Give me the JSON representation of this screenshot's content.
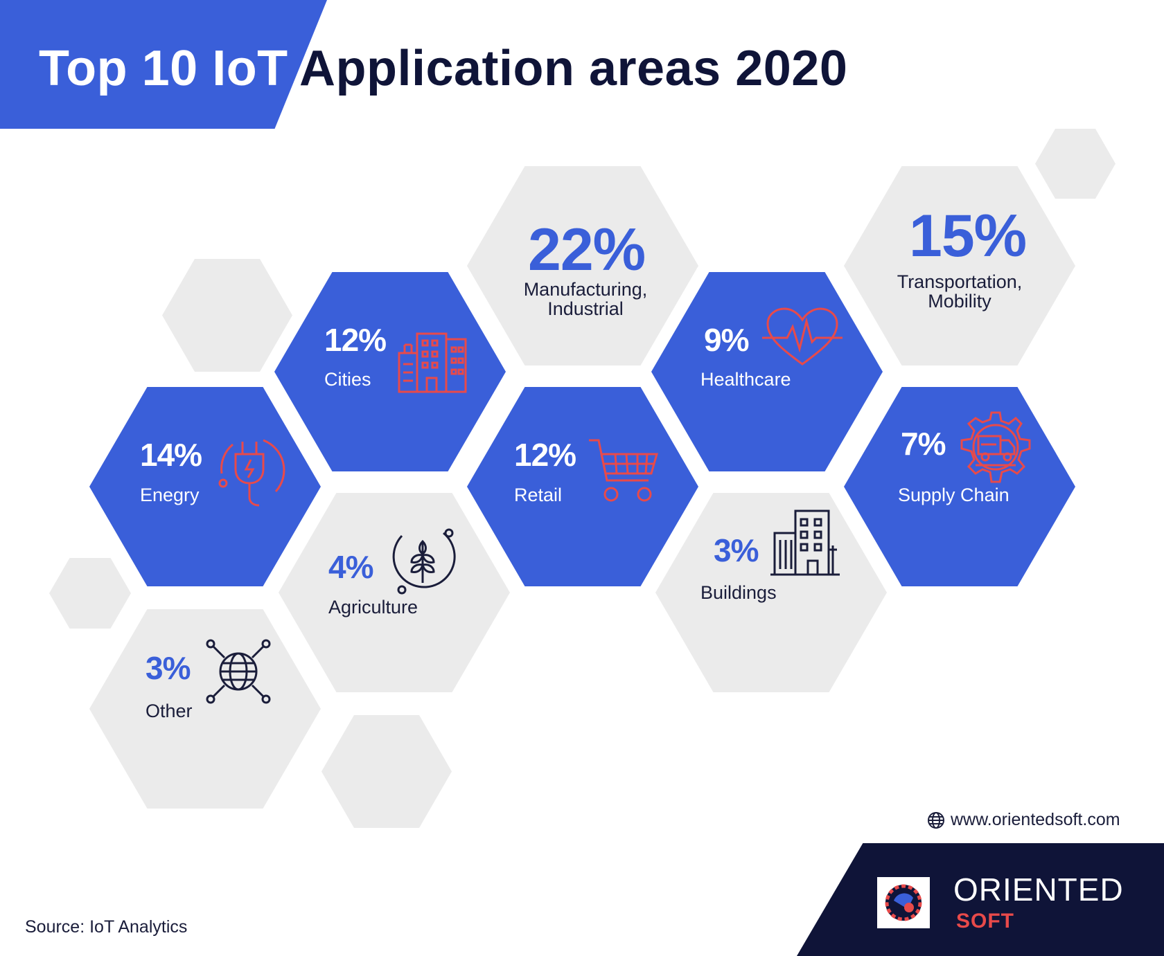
{
  "title": {
    "part1": "Top 10 IoT",
    "part2": "Application areas 2020"
  },
  "items": [
    {
      "id": "manufacturing",
      "percent": "22%",
      "label_line1": "Manufacturing,",
      "label_line2": "Industrial",
      "icon": "none"
    },
    {
      "id": "transportation",
      "percent": "15%",
      "label_line1": "Transportation,",
      "label_line2": "Mobility",
      "icon": "none"
    },
    {
      "id": "energy",
      "percent": "14%",
      "label": "Enegry",
      "icon": "plug-icon"
    },
    {
      "id": "cities",
      "percent": "12%",
      "label": "Cities",
      "icon": "city-buildings-icon"
    },
    {
      "id": "retail",
      "percent": "12%",
      "label": "Retail",
      "icon": "shopping-cart-icon"
    },
    {
      "id": "healthcare",
      "percent": "9%",
      "label": "Healthcare",
      "icon": "heartbeat-icon"
    },
    {
      "id": "supply_chain",
      "percent": "7%",
      "label": "Supply Chain",
      "icon": "truck-gear-icon"
    },
    {
      "id": "agriculture",
      "percent": "4%",
      "label": "Agriculture",
      "icon": "wheat-icon"
    },
    {
      "id": "buildings",
      "percent": "3%",
      "label": "Buildings",
      "icon": "building-icon"
    },
    {
      "id": "other",
      "percent": "3%",
      "label": "Other",
      "icon": "globe-network-icon"
    }
  ],
  "website": "www.orientedsoft.com",
  "source": "Source: IoT Analytics",
  "logo": {
    "word1": "ORIENTED",
    "word2": "SOFT"
  },
  "colors": {
    "blue": "#3a5fd9",
    "grey": "#ebebeb",
    "navy": "#0f1438",
    "red": "#e84a4a"
  }
}
